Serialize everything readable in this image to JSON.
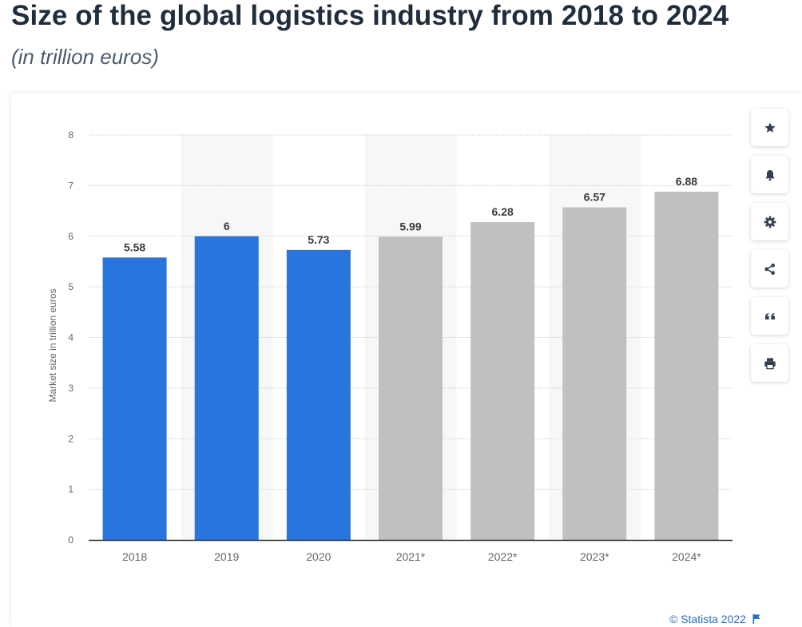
{
  "header": {
    "title": "Size of the global logistics industry from 2018 to 2024",
    "subtitle": "(in trillion euros)"
  },
  "sidebar": {
    "buttons": [
      {
        "name": "favorite",
        "icon": "star-icon"
      },
      {
        "name": "notification",
        "icon": "bell-icon"
      },
      {
        "name": "settings",
        "icon": "gear-icon"
      },
      {
        "name": "share",
        "icon": "share-icon"
      },
      {
        "name": "cite",
        "icon": "quote-icon"
      },
      {
        "name": "print",
        "icon": "print-icon"
      }
    ]
  },
  "credit": {
    "text": "© Statista 2022",
    "icon": "flag-icon"
  },
  "colors": {
    "actual": "#2876dd",
    "forecast": "#c0c0c0",
    "title": "#1f2d3d",
    "credit": "#2a6fb8"
  },
  "chart_data": {
    "type": "bar",
    "title": "Size of the global logistics industry from 2018 to 2024",
    "subtitle": "(in trillion euros)",
    "xlabel": "",
    "ylabel": "Market size in trillion euros",
    "ylim": [
      0,
      8
    ],
    "yticks": [
      0,
      1,
      2,
      3,
      4,
      5,
      6,
      7,
      8
    ],
    "grid": true,
    "categories": [
      "2018",
      "2019",
      "2020",
      "2021*",
      "2022*",
      "2023*",
      "2024*"
    ],
    "values": [
      5.58,
      6,
      5.73,
      5.99,
      6.28,
      6.57,
      6.88
    ],
    "value_labels": [
      "5.58",
      "6",
      "5.73",
      "5.99",
      "6.28",
      "6.57",
      "6.88"
    ],
    "forecast": [
      false,
      false,
      false,
      true,
      true,
      true,
      true
    ]
  }
}
